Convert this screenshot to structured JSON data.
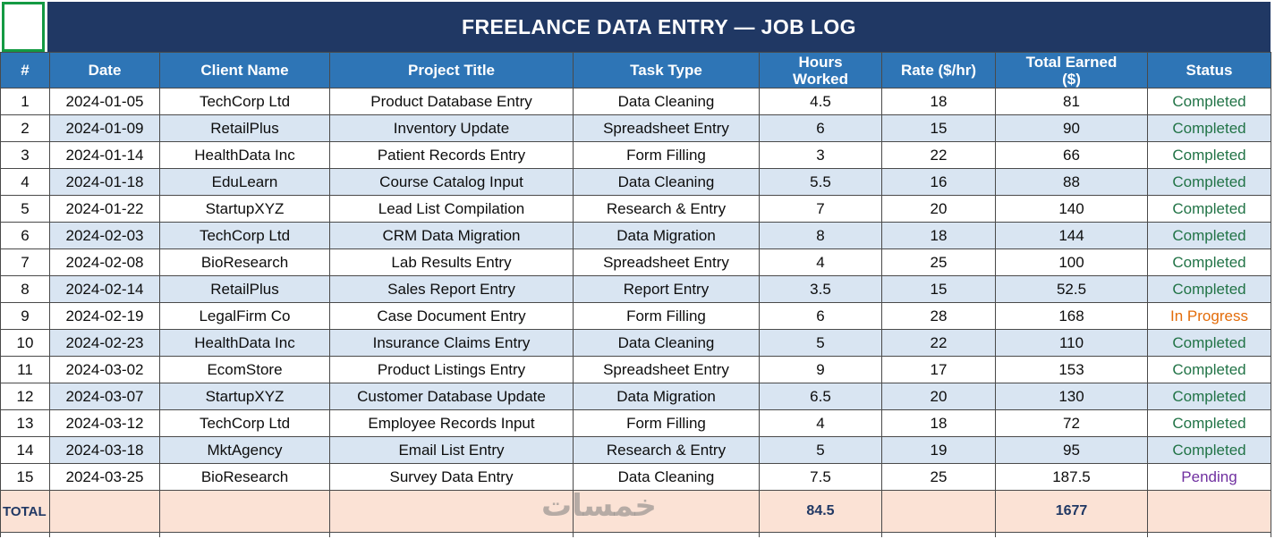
{
  "title": "FREELANCE DATA ENTRY — JOB LOG",
  "watermark": "خمسات",
  "columns": [
    "#",
    "Date",
    "Client Name",
    "Project Title",
    "Task Type",
    "Hours Worked",
    "Rate ($/hr)",
    "Total Earned ($)",
    "Status"
  ],
  "rows": [
    {
      "num": "1",
      "date": "2024-01-05",
      "client": "TechCorp Ltd",
      "project": "Product Database Entry",
      "task": "Data Cleaning",
      "hours": "4.5",
      "rate": "18",
      "total": "81",
      "status": "Completed"
    },
    {
      "num": "2",
      "date": "2024-01-09",
      "client": "RetailPlus",
      "project": "Inventory Update",
      "task": "Spreadsheet Entry",
      "hours": "6",
      "rate": "15",
      "total": "90",
      "status": "Completed"
    },
    {
      "num": "3",
      "date": "2024-01-14",
      "client": "HealthData Inc",
      "project": "Patient Records Entry",
      "task": "Form Filling",
      "hours": "3",
      "rate": "22",
      "total": "66",
      "status": "Completed"
    },
    {
      "num": "4",
      "date": "2024-01-18",
      "client": "EduLearn",
      "project": "Course Catalog Input",
      "task": "Data Cleaning",
      "hours": "5.5",
      "rate": "16",
      "total": "88",
      "status": "Completed"
    },
    {
      "num": "5",
      "date": "2024-01-22",
      "client": "StartupXYZ",
      "project": "Lead List Compilation",
      "task": "Research & Entry",
      "hours": "7",
      "rate": "20",
      "total": "140",
      "status": "Completed"
    },
    {
      "num": "6",
      "date": "2024-02-03",
      "client": "TechCorp Ltd",
      "project": "CRM Data Migration",
      "task": "Data Migration",
      "hours": "8",
      "rate": "18",
      "total": "144",
      "status": "Completed"
    },
    {
      "num": "7",
      "date": "2024-02-08",
      "client": "BioResearch",
      "project": "Lab Results Entry",
      "task": "Spreadsheet Entry",
      "hours": "4",
      "rate": "25",
      "total": "100",
      "status": "Completed"
    },
    {
      "num": "8",
      "date": "2024-02-14",
      "client": "RetailPlus",
      "project": "Sales Report Entry",
      "task": "Report Entry",
      "hours": "3.5",
      "rate": "15",
      "total": "52.5",
      "status": "Completed"
    },
    {
      "num": "9",
      "date": "2024-02-19",
      "client": "LegalFirm Co",
      "project": "Case Document Entry",
      "task": "Form Filling",
      "hours": "6",
      "rate": "28",
      "total": "168",
      "status": "In Progress"
    },
    {
      "num": "10",
      "date": "2024-02-23",
      "client": "HealthData Inc",
      "project": "Insurance Claims Entry",
      "task": "Data Cleaning",
      "hours": "5",
      "rate": "22",
      "total": "110",
      "status": "Completed"
    },
    {
      "num": "11",
      "date": "2024-03-02",
      "client": "EcomStore",
      "project": "Product Listings Entry",
      "task": "Spreadsheet Entry",
      "hours": "9",
      "rate": "17",
      "total": "153",
      "status": "Completed"
    },
    {
      "num": "12",
      "date": "2024-03-07",
      "client": "StartupXYZ",
      "project": "Customer Database Update",
      "task": "Data Migration",
      "hours": "6.5",
      "rate": "20",
      "total": "130",
      "status": "Completed"
    },
    {
      "num": "13",
      "date": "2024-03-12",
      "client": "TechCorp Ltd",
      "project": "Employee Records Input",
      "task": "Form Filling",
      "hours": "4",
      "rate": "18",
      "total": "72",
      "status": "Completed"
    },
    {
      "num": "14",
      "date": "2024-03-18",
      "client": "MktAgency",
      "project": "Email List Entry",
      "task": "Research & Entry",
      "hours": "5",
      "rate": "19",
      "total": "95",
      "status": "Completed"
    },
    {
      "num": "15",
      "date": "2024-03-25",
      "client": "BioResearch",
      "project": "Survey Data Entry",
      "task": "Data Cleaning",
      "hours": "7.5",
      "rate": "25",
      "total": "187.5",
      "status": "Pending"
    }
  ],
  "total_row": {
    "label": "TOTAL",
    "hours": "84.5",
    "total": "1677"
  },
  "status_colors": {
    "Completed": "#217346",
    "In Progress": "#e36c0a",
    "Pending": "#7030a0"
  },
  "colors": {
    "title_bg": "#203864",
    "header_bg": "#2e75b6",
    "stripe": "#d9e5f2",
    "total_bg": "#fbe2d5",
    "selection_border": "#149a43"
  }
}
